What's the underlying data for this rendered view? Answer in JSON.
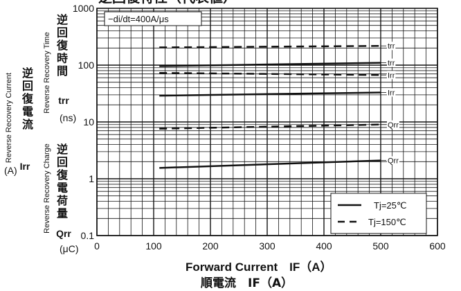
{
  "chart_data": {
    "type": "line",
    "title": "逆回復特性（代表値）",
    "condition": "−di/dt=400A/μs",
    "xlabel": "Forward Current　IF（A）",
    "xlabel_jp": "順電流　IF（A）",
    "xlim": [
      0,
      600
    ],
    "ylim": [
      0.1,
      1000
    ],
    "yscale": "log",
    "x_ticks": [
      "0",
      "100",
      "200",
      "300",
      "400",
      "500",
      "600"
    ],
    "y_ticks": [
      "0.1",
      "1",
      "10",
      "100",
      "1000"
    ],
    "grid": true,
    "legend_position": "bottom-right",
    "ylabel_groups": [
      {
        "en": "Reverse Recovery Time",
        "jp": [
          "逆",
          "回",
          "復",
          "時",
          "間"
        ],
        "sym": "trr",
        "unit": "(ns)"
      },
      {
        "en": "Reverse Recovery Current",
        "jp": [
          "逆",
          "回",
          "復",
          "電",
          "流"
        ],
        "sym": "Irr",
        "unit": "(A)"
      },
      {
        "en": "Reverse Recovery Charge",
        "jp": [
          "逆",
          "回",
          "復",
          "電",
          "荷",
          "量"
        ],
        "sym": "Qrr",
        "unit": "(μC)"
      }
    ],
    "series": [
      {
        "label": "trr",
        "temp": "Tj=150℃",
        "x": [
          110,
          500
        ],
        "y": [
          205,
          218
        ]
      },
      {
        "label": "trr",
        "temp": "Tj=25℃",
        "x": [
          110,
          500
        ],
        "y": [
          96,
          110
        ]
      },
      {
        "label": "Irr",
        "temp": "Tj=150℃",
        "x": [
          110,
          500
        ],
        "y": [
          73,
          67
        ]
      },
      {
        "label": "Irr",
        "temp": "Tj=25℃",
        "x": [
          110,
          500
        ],
        "y": [
          29,
          33
        ]
      },
      {
        "label": "Qrr",
        "temp": "Tj=150℃",
        "x": [
          110,
          500
        ],
        "y": [
          7.6,
          9.0
        ]
      },
      {
        "label": "Qrr",
        "temp": "Tj=25℃",
        "x": [
          110,
          500
        ],
        "y": [
          1.55,
          2.1
        ]
      }
    ],
    "legend": [
      {
        "label": "Tj=25℃",
        "style": "solid"
      },
      {
        "label": "Tj=150℃",
        "style": "dashed"
      }
    ]
  }
}
